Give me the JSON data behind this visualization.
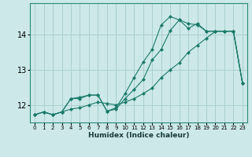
{
  "xlabel": "Humidex (Indice chaleur)",
  "ylabel": "",
  "bg_color": "#cce8e8",
  "grid_color": "#aacfcf",
  "line_color": "#1a7a6a",
  "xlim": [
    -0.5,
    23.5
  ],
  "ylim": [
    11.5,
    14.9
  ],
  "yticks": [
    12,
    13,
    14
  ],
  "xticks": [
    0,
    1,
    2,
    3,
    4,
    5,
    6,
    7,
    8,
    9,
    10,
    11,
    12,
    13,
    14,
    15,
    16,
    17,
    18,
    19,
    20,
    21,
    22,
    23
  ],
  "series": [
    {
      "x": [
        0,
        1,
        2,
        3,
        4,
        5,
        6,
        7,
        8,
        9,
        10,
        11,
        12,
        13,
        14,
        15,
        16,
        17,
        18,
        19,
        20,
        21,
        22,
        23
      ],
      "y": [
        11.72,
        11.8,
        11.72,
        11.8,
        11.88,
        11.92,
        12.0,
        12.08,
        12.04,
        12.0,
        12.08,
        12.18,
        12.32,
        12.48,
        12.78,
        13.0,
        13.2,
        13.5,
        13.7,
        13.9,
        14.1,
        14.1,
        14.1,
        12.62
      ]
    },
    {
      "x": [
        0,
        1,
        2,
        3,
        4,
        5,
        6,
        7,
        8,
        9,
        10,
        11,
        12,
        13,
        14,
        15,
        16,
        17,
        18,
        19,
        20,
        21,
        22,
        23
      ],
      "y": [
        11.72,
        11.8,
        11.72,
        11.8,
        12.18,
        12.22,
        12.28,
        12.28,
        11.82,
        11.88,
        12.18,
        12.44,
        12.72,
        13.28,
        13.58,
        14.12,
        14.42,
        14.18,
        14.32,
        14.1,
        14.1,
        14.1,
        14.1,
        12.62
      ]
    },
    {
      "x": [
        0,
        1,
        2,
        3,
        4,
        5,
        6,
        7,
        8,
        9,
        10,
        11,
        12,
        13,
        14,
        15,
        16,
        17,
        18,
        19,
        20,
        21,
        22,
        23
      ],
      "y": [
        11.72,
        11.8,
        11.72,
        11.8,
        12.18,
        12.18,
        12.28,
        12.28,
        11.82,
        11.92,
        12.32,
        12.78,
        13.22,
        13.58,
        14.28,
        14.52,
        14.42,
        14.32,
        14.28,
        14.1,
        14.1,
        14.1,
        14.1,
        12.62
      ]
    }
  ]
}
